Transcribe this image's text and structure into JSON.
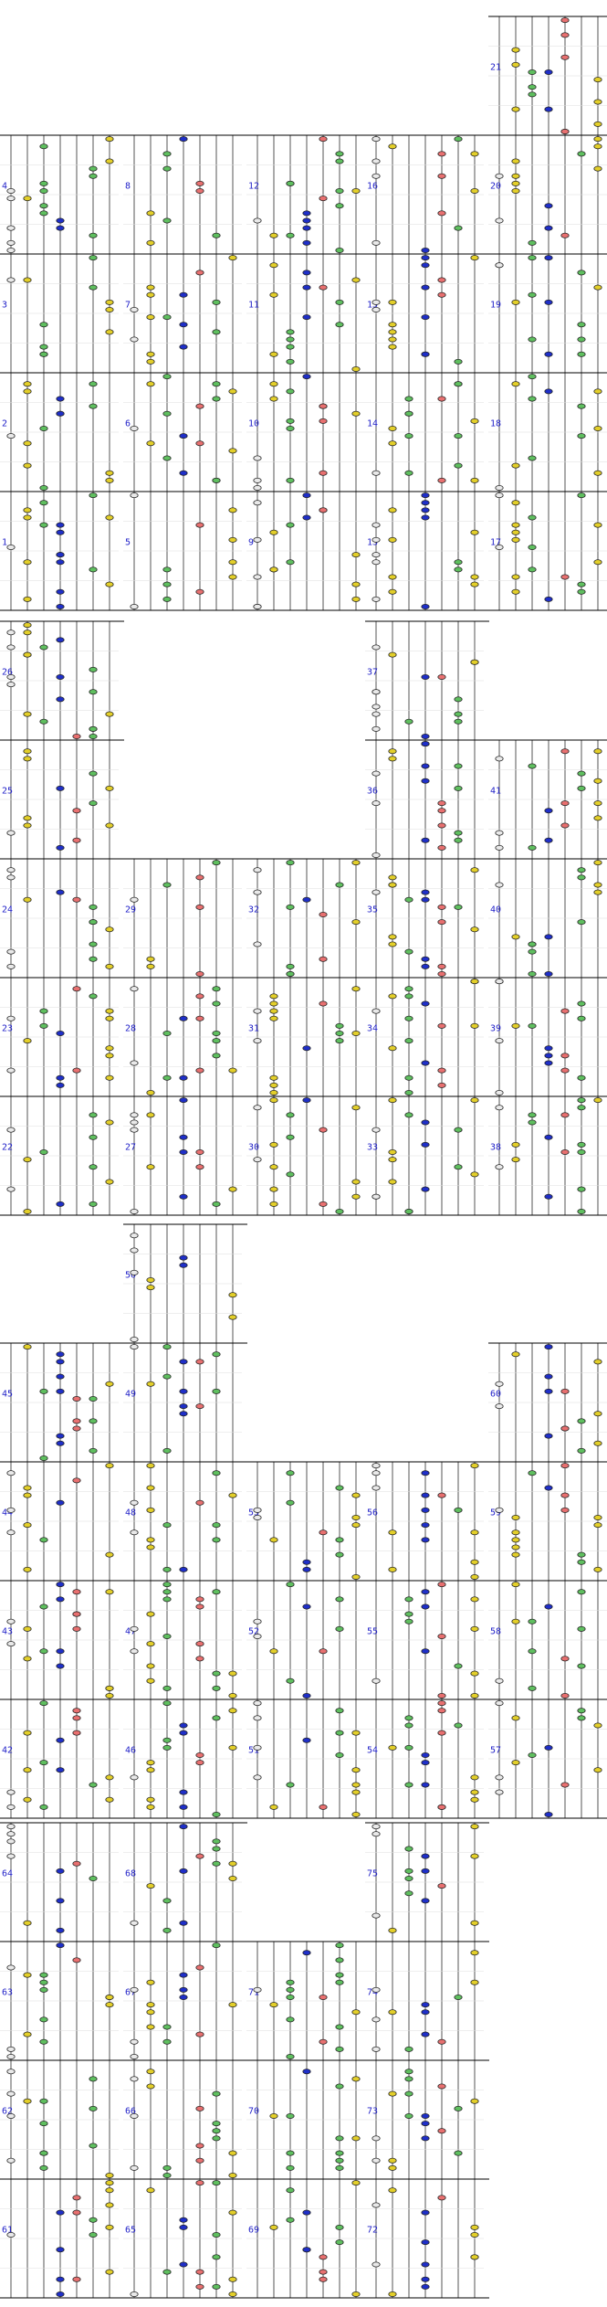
{
  "screen": {
    "kind": "rhythm-game step chart",
    "measure_labels": [
      "1",
      "2",
      "3",
      "4",
      "5",
      "6",
      "7",
      "8",
      "9",
      "10",
      "11",
      "12",
      "13",
      "14",
      "15",
      "16",
      "17",
      "18",
      "19",
      "20",
      "21",
      "22",
      "23",
      "24",
      "25",
      "26",
      "27",
      "28",
      "29",
      "30",
      "31",
      "32",
      "33",
      "34",
      "35",
      "36",
      "37",
      "38",
      "39",
      "40",
      "41",
      "42",
      "43",
      "44",
      "45",
      "46",
      "47",
      "48",
      "49",
      "50",
      "51",
      "52",
      "53",
      "54",
      "55",
      "56",
      "57",
      "58",
      "59",
      "60",
      "61",
      "62",
      "63",
      "64",
      "65",
      "66",
      "67",
      "68",
      "69",
      "70",
      "71",
      "72",
      "73",
      "74",
      "75"
    ],
    "lanes": 7,
    "colors": {
      "background": "#ffffff",
      "lane_line": "#555555",
      "measure_line": "#000000",
      "label": "#1f1fc8",
      "note_white": "#e9e9e9",
      "note_yellow": "#e3cf2a",
      "note_green": "#5fbf5f",
      "note_blue": "#1f2fc8",
      "note_red": "#e87070",
      "note_outline": "#222222"
    },
    "note_icon": "lens-note-icon"
  }
}
